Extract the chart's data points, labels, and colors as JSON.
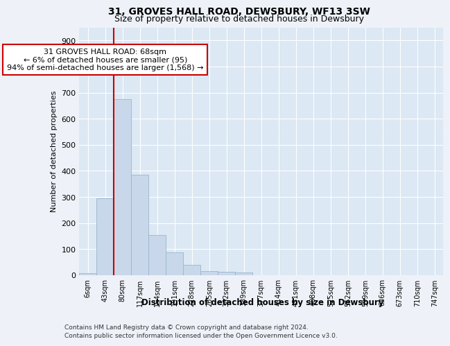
{
  "title": "31, GROVES HALL ROAD, DEWSBURY, WF13 3SW",
  "subtitle": "Size of property relative to detached houses in Dewsbury",
  "xlabel": "Distribution of detached houses by size in Dewsbury",
  "ylabel": "Number of detached properties",
  "bar_labels": [
    "6sqm",
    "43sqm",
    "80sqm",
    "117sqm",
    "154sqm",
    "191sqm",
    "228sqm",
    "265sqm",
    "302sqm",
    "339sqm",
    "377sqm",
    "414sqm",
    "451sqm",
    "488sqm",
    "525sqm",
    "562sqm",
    "599sqm",
    "636sqm",
    "673sqm",
    "710sqm",
    "747sqm"
  ],
  "bar_values": [
    8,
    295,
    675,
    385,
    155,
    88,
    40,
    15,
    14,
    11,
    0,
    0,
    0,
    0,
    0,
    0,
    0,
    0,
    0,
    0,
    0
  ],
  "bar_color": "#c8d8ea",
  "bar_edge_color": "#9ab4cc",
  "vline_x_idx": 2,
  "vline_color": "#cc0000",
  "annotation_text": "31 GROVES HALL ROAD: 68sqm\n← 6% of detached houses are smaller (95)\n94% of semi-detached houses are larger (1,568) →",
  "annotation_box_color": "#ffffff",
  "annotation_box_edge": "#cc0000",
  "ylim": [
    0,
    950
  ],
  "yticks": [
    0,
    100,
    200,
    300,
    400,
    500,
    600,
    700,
    800,
    900
  ],
  "footer1": "Contains HM Land Registry data © Crown copyright and database right 2024.",
  "footer2": "Contains public sector information licensed under the Open Government Licence v3.0.",
  "bg_color": "#eef2f8",
  "plot_bg_color": "#dce8f4"
}
